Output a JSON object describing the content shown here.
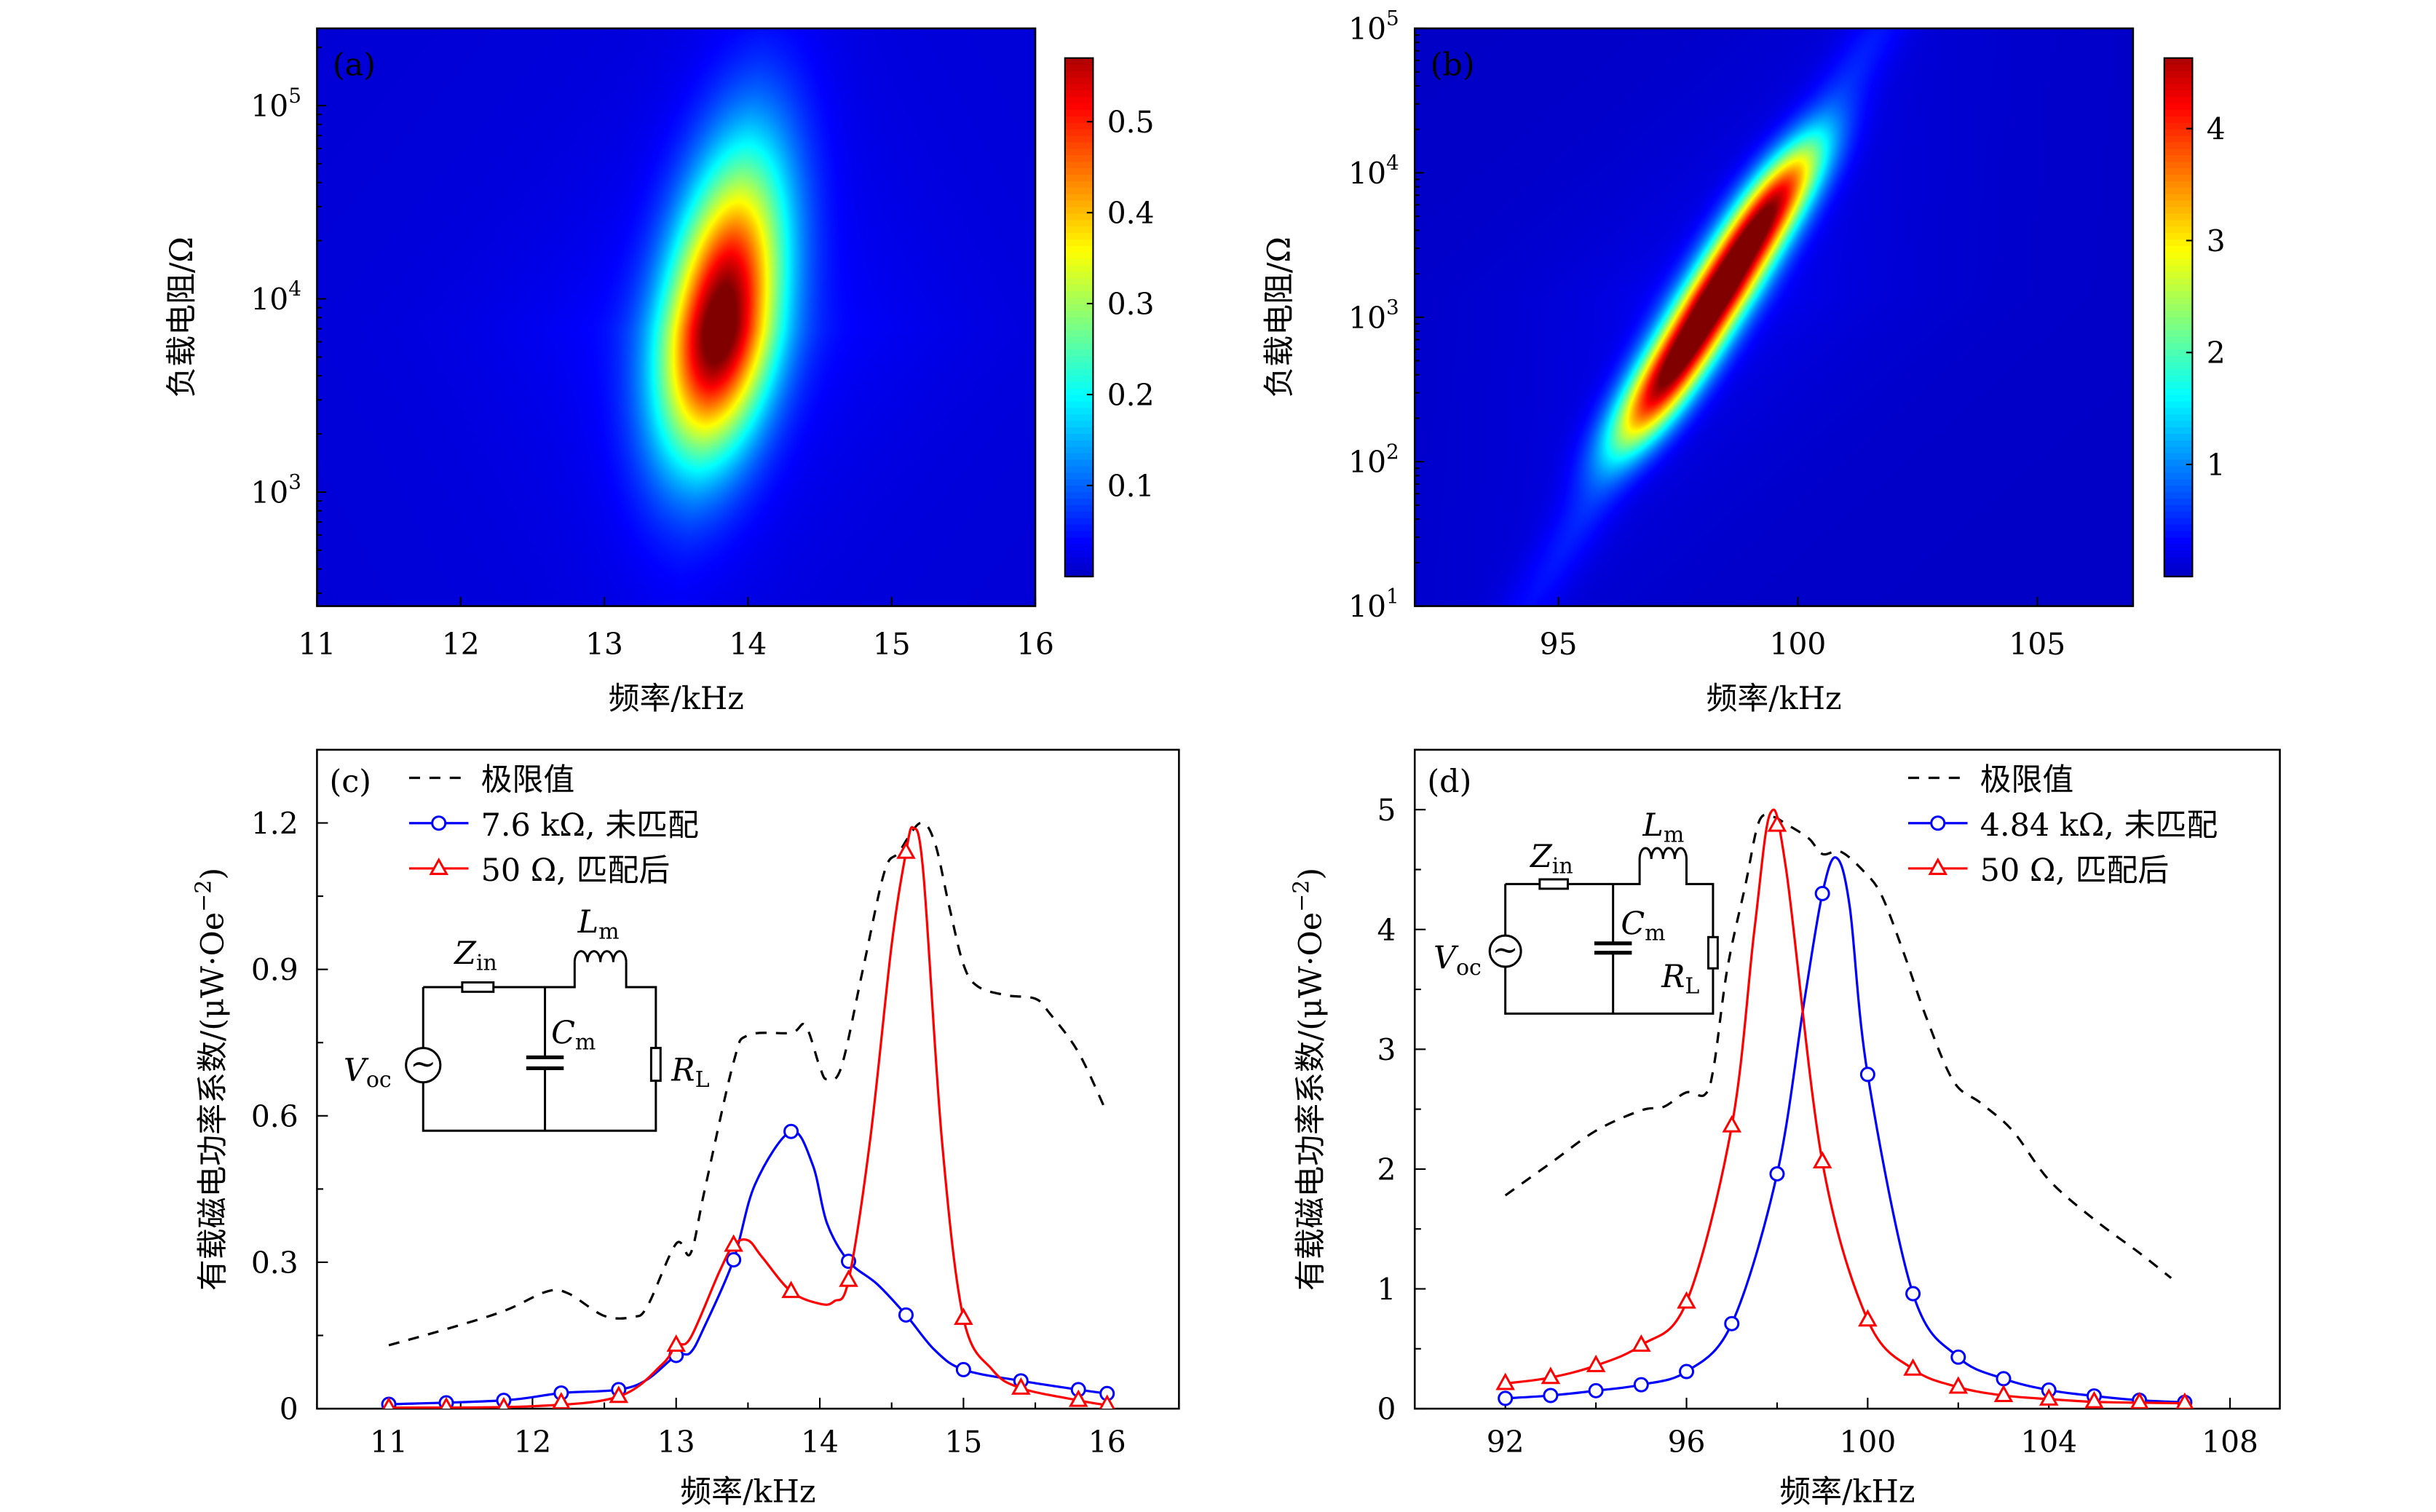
{
  "chart_data": [
    {
      "panel": "(a)",
      "type": "heatmap",
      "xlabel": "频率/kHz",
      "ylabel": "负载电阻/Ω",
      "xlim": [
        11,
        16
      ],
      "ylim": [
        257,
        251000
      ],
      "yscale": "log",
      "xticks": [
        11,
        12,
        13,
        14,
        15,
        16
      ],
      "yticks": [
        {
          "base": "10",
          "exp": "3",
          "value": 1000
        },
        {
          "base": "10",
          "exp": "4",
          "value": 10000
        },
        {
          "base": "10",
          "exp": "5",
          "value": 100000
        }
      ],
      "colormap": "jet",
      "colorbar": {
        "range": [
          0,
          0.57
        ],
        "ticks": [
          "0.1",
          "0.2",
          "0.3",
          "0.4",
          "0.5"
        ]
      },
      "peak": {
        "x": 13.8,
        "y": 7000,
        "z": 0.57
      }
    },
    {
      "panel": "(b)",
      "type": "heatmap",
      "xlabel": "频率/kHz",
      "ylabel": "负载电阻/Ω",
      "xlim": [
        92,
        107
      ],
      "ylim": [
        10,
        100000
      ],
      "yscale": "log",
      "xticks": [
        95,
        100,
        105
      ],
      "yticks": [
        {
          "base": "10",
          "exp": "1",
          "value": 10
        },
        {
          "base": "10",
          "exp": "2",
          "value": 100
        },
        {
          "base": "10",
          "exp": "3",
          "value": 1000
        },
        {
          "base": "10",
          "exp": "4",
          "value": 10000
        },
        {
          "base": "10",
          "exp": "5",
          "value": 100000
        }
      ],
      "colormap": "jet",
      "colorbar": {
        "range": [
          0,
          4.63
        ],
        "ticks": [
          "1",
          "2",
          "3",
          "4"
        ]
      },
      "ridge": [
        {
          "x": 97.3,
          "y": 400,
          "z": 4.6
        },
        {
          "x": 99.3,
          "y": 5000,
          "z": 4.6
        }
      ]
    },
    {
      "panel": "(c)",
      "type": "line",
      "xlabel": "频率/kHz",
      "ylabel": "有载磁电功率系数/(μW·Oe",
      "ylabel_sup": "−2",
      "ylabel_end": ")",
      "xlim": [
        10.5,
        16.5
      ],
      "ylim": [
        0,
        1.35
      ],
      "xticks": [
        11,
        12,
        13,
        14,
        15,
        16
      ],
      "yticks": [
        "0",
        "0.3",
        "0.6",
        "0.9",
        "1.2"
      ],
      "legend_position": "top-left",
      "series": [
        {
          "name": "极限值",
          "color": "#000000",
          "style": "dashed",
          "marker": "none",
          "x": [
            11,
            11.4,
            11.8,
            12.1,
            12.25,
            12.5,
            12.7,
            12.8,
            13.0,
            13.1,
            13.2,
            13.4,
            13.5,
            13.8,
            13.9,
            14.0,
            14.05,
            14.15,
            14.3,
            14.45,
            14.55,
            14.7,
            14.8,
            14.9,
            15.0,
            15.1,
            15.3,
            15.5,
            15.6,
            15.8,
            16.0
          ],
          "y": [
            0.13,
            0.163,
            0.2,
            0.24,
            0.236,
            0.19,
            0.188,
            0.21,
            0.338,
            0.318,
            0.45,
            0.71,
            0.765,
            0.77,
            0.785,
            0.7,
            0.675,
            0.7,
            0.9,
            1.1,
            1.14,
            1.2,
            1.16,
            1.03,
            0.91,
            0.865,
            0.847,
            0.84,
            0.81,
            0.73,
            0.605
          ]
        },
        {
          "name": "7.6 kΩ, 未匹配",
          "color": "#0000ff",
          "style": "solid",
          "marker": "circle",
          "x": [
            11,
            11.4,
            11.8,
            12.2,
            12.6,
            13.0,
            13.4,
            13.8,
            14.2,
            14.6,
            15.0,
            15.4,
            15.8,
            16.0
          ],
          "y": [
            0.009,
            0.012,
            0.017,
            0.032,
            0.039,
            0.109,
            0.305,
            0.568,
            0.302,
            0.192,
            0.08,
            0.057,
            0.039,
            0.031
          ],
          "curve": [
            [
              11,
              0.009
            ],
            [
              11.8,
              0.017
            ],
            [
              12.2,
              0.032
            ],
            [
              12.6,
              0.039
            ],
            [
              12.8,
              0.06
            ],
            [
              13.0,
              0.109
            ],
            [
              13.1,
              0.115
            ],
            [
              13.2,
              0.17
            ],
            [
              13.4,
              0.305
            ],
            [
              13.55,
              0.46
            ],
            [
              13.8,
              0.568
            ],
            [
              13.95,
              0.5
            ],
            [
              14.05,
              0.38
            ],
            [
              14.2,
              0.302
            ],
            [
              14.4,
              0.255
            ],
            [
              14.6,
              0.192
            ],
            [
              14.8,
              0.12
            ],
            [
              15.0,
              0.08
            ],
            [
              15.4,
              0.057
            ],
            [
              15.8,
              0.039
            ],
            [
              16,
              0.031
            ]
          ]
        },
        {
          "name": "50 Ω, 匹配后",
          "color": "#ff0000",
          "style": "solid",
          "marker": "triangle",
          "x": [
            11,
            11.4,
            11.8,
            12.2,
            12.6,
            13.0,
            13.4,
            13.8,
            14.2,
            14.6,
            15.0,
            15.4,
            15.8,
            16.0
          ],
          "y": [
            0.002,
            0.002,
            0.002,
            0.012,
            0.025,
            0.13,
            0.335,
            0.24,
            0.263,
            1.14,
            0.185,
            0.042,
            0.017,
            0.007
          ],
          "curve": [
            [
              11,
              0.002
            ],
            [
              12,
              0.005
            ],
            [
              12.6,
              0.025
            ],
            [
              12.9,
              0.09
            ],
            [
              13.0,
              0.13
            ],
            [
              13.1,
              0.145
            ],
            [
              13.3,
              0.28
            ],
            [
              13.4,
              0.335
            ],
            [
              13.5,
              0.345
            ],
            [
              13.6,
              0.31
            ],
            [
              13.8,
              0.24
            ],
            [
              14.0,
              0.215
            ],
            [
              14.1,
              0.22
            ],
            [
              14.2,
              0.263
            ],
            [
              14.35,
              0.55
            ],
            [
              14.5,
              0.95
            ],
            [
              14.6,
              1.14
            ],
            [
              14.65,
              1.19
            ],
            [
              14.72,
              1.1
            ],
            [
              14.85,
              0.55
            ],
            [
              15.0,
              0.185
            ],
            [
              15.2,
              0.08
            ],
            [
              15.4,
              0.042
            ],
            [
              15.8,
              0.017
            ],
            [
              16,
              0.007
            ]
          ]
        }
      ],
      "inset": {
        "zin": "Z",
        "zin_sub": "in",
        "lm": "L",
        "lm_sub": "m",
        "cm": "C",
        "cm_sub": "m",
        "voc": "V",
        "voc_sub": "oc",
        "rl": "R",
        "rl_sub": "L",
        "source_symbol": "~"
      }
    },
    {
      "panel": "(d)",
      "type": "line",
      "xlabel": "频率/kHz",
      "ylabel": "有载磁电功率系数/(μW·Oe",
      "ylabel_sup": "−2",
      "ylabel_end": ")",
      "xlim": [
        90,
        109.1
      ],
      "ylim": [
        0,
        5.5
      ],
      "xticks": [
        92,
        96,
        100,
        104,
        108
      ],
      "yticks": [
        "0",
        "1",
        "2",
        "3",
        "4",
        "5"
      ],
      "legend_position": "top-right",
      "series": [
        {
          "name": "极限值",
          "color": "#000000",
          "style": "dashed",
          "marker": "none",
          "x": [
            92,
            93,
            94,
            95,
            95.5,
            96,
            96.4,
            96.6,
            96.9,
            97.3,
            97.6,
            97.9,
            98.2,
            98.7,
            99.0,
            99.4,
            99.9,
            100.3,
            100.8,
            101.3,
            101.9,
            102.5,
            103.2,
            104.0,
            105.0,
            106.0,
            106.7
          ],
          "y": [
            1.78,
            2.05,
            2.32,
            2.49,
            2.52,
            2.64,
            2.62,
            2.85,
            3.67,
            4.37,
            4.9,
            4.94,
            4.88,
            4.76,
            4.63,
            4.65,
            4.49,
            4.29,
            3.8,
            3.26,
            2.73,
            2.55,
            2.32,
            1.91,
            1.58,
            1.3,
            1.09
          ]
        },
        {
          "name": "4.84 kΩ, 未匹配",
          "color": "#0000ff",
          "style": "solid",
          "marker": "circle",
          "x": [
            92,
            93,
            94,
            95,
            96,
            97,
            98,
            99,
            100,
            101,
            102,
            103,
            104,
            105,
            106,
            107
          ],
          "y": [
            0.086,
            0.11,
            0.15,
            0.2,
            0.31,
            0.71,
            1.96,
            4.3,
            2.79,
            0.96,
            0.43,
            0.25,
            0.155,
            0.106,
            0.07,
            0.053
          ],
          "curve": [
            [
              92,
              0.086
            ],
            [
              93,
              0.11
            ],
            [
              94,
              0.15
            ],
            [
              95,
              0.2
            ],
            [
              96,
              0.31
            ],
            [
              97,
              0.71
            ],
            [
              98,
              1.96
            ],
            [
              98.6,
              3.4
            ],
            [
              99,
              4.3
            ],
            [
              99.3,
              4.6
            ],
            [
              99.6,
              4.2
            ],
            [
              100,
              2.79
            ],
            [
              101,
              0.96
            ],
            [
              102,
              0.43
            ],
            [
              103,
              0.25
            ],
            [
              104,
              0.155
            ],
            [
              105,
              0.106
            ],
            [
              106,
              0.07
            ],
            [
              107,
              0.053
            ]
          ]
        },
        {
          "name": "50 Ω, 匹配后",
          "color": "#ff0000",
          "style": "solid",
          "marker": "triangle",
          "x": [
            92,
            93,
            94,
            95,
            96,
            97,
            98,
            99,
            100,
            101,
            102,
            103,
            104,
            105,
            106,
            107
          ],
          "y": [
            0.21,
            0.26,
            0.36,
            0.53,
            0.89,
            2.36,
            4.87,
            2.06,
            0.74,
            0.33,
            0.18,
            0.11,
            0.08,
            0.057,
            0.05,
            0.045
          ],
          "curve": [
            [
              92,
              0.21
            ],
            [
              93,
              0.26
            ],
            [
              94,
              0.36
            ],
            [
              95,
              0.53
            ],
            [
              96,
              0.89
            ],
            [
              97,
              2.36
            ],
            [
              97.5,
              4.0
            ],
            [
              97.85,
              4.97
            ],
            [
              98.2,
              4.5
            ],
            [
              99,
              2.06
            ],
            [
              100,
              0.74
            ],
            [
              101,
              0.33
            ],
            [
              102,
              0.18
            ],
            [
              103,
              0.11
            ],
            [
              104,
              0.08
            ],
            [
              105,
              0.057
            ],
            [
              106,
              0.05
            ],
            [
              107,
              0.045
            ]
          ]
        }
      ],
      "inset": {
        "zin": "Z",
        "zin_sub": "in",
        "lm": "L",
        "lm_sub": "m",
        "cm": "C",
        "cm_sub": "m",
        "voc": "V",
        "voc_sub": "oc",
        "rl": "R",
        "rl_sub": "L",
        "source_symbol": "~"
      }
    }
  ]
}
